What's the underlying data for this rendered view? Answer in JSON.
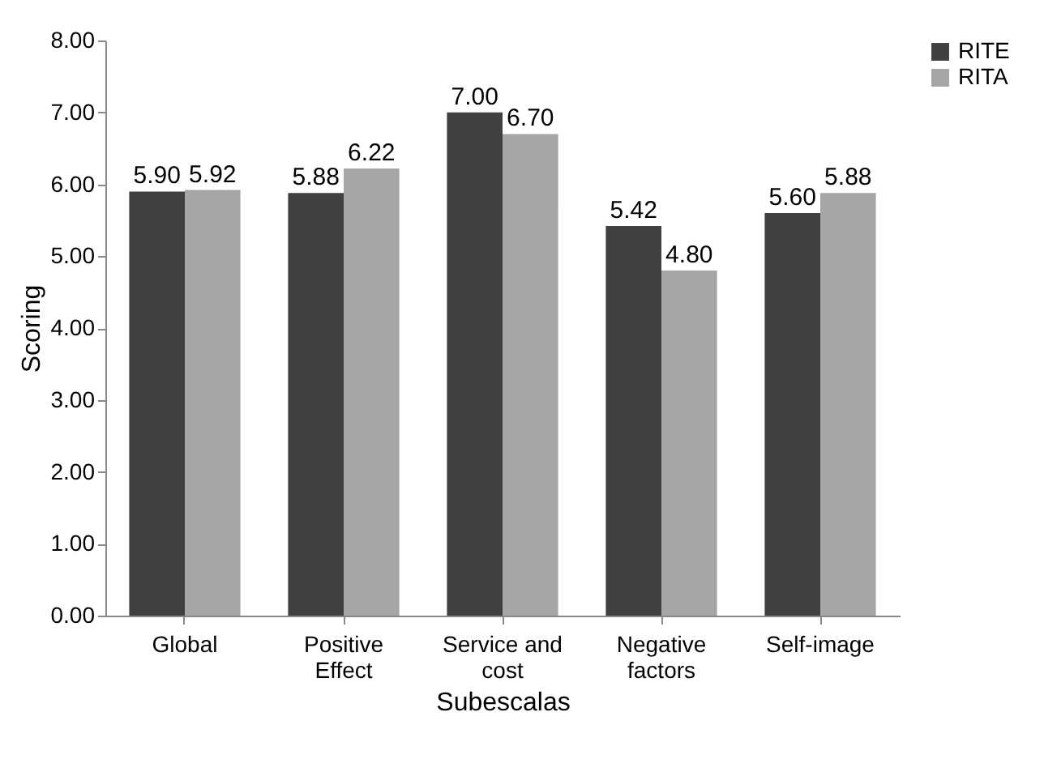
{
  "chart_data": {
    "type": "bar",
    "xlabel": "Subescalas",
    "ylabel": "Scoring",
    "categories": [
      "Global",
      "Positive Effect",
      "Service and cost",
      "Negative factors",
      "Self-image"
    ],
    "series": [
      {
        "name": "RITE",
        "color": "#404040",
        "values": [
          5.9,
          5.88,
          7.0,
          5.42,
          5.6
        ],
        "value_labels": [
          "5.90",
          "5.88",
          "7.00",
          "5.42",
          "5.60"
        ]
      },
      {
        "name": "RITA",
        "color": "#a6a6a6",
        "values": [
          5.92,
          6.22,
          6.7,
          4.8,
          5.88
        ],
        "value_labels": [
          "5.92",
          "6.22",
          "6.70",
          "4.80",
          "5.88"
        ]
      }
    ],
    "ylim": [
      0,
      8
    ],
    "yticks": [
      {
        "value": 0,
        "label": "0.00"
      },
      {
        "value": 1,
        "label": "1.00"
      },
      {
        "value": 2,
        "label": "2.00"
      },
      {
        "value": 3,
        "label": "3.00"
      },
      {
        "value": 4,
        "label": "4.00"
      },
      {
        "value": 5,
        "label": "5.00"
      },
      {
        "value": 6,
        "label": "6.00"
      },
      {
        "value": 7,
        "label": "7.00"
      },
      {
        "value": 8,
        "label": "8.00"
      }
    ],
    "legend": "right",
    "grid": false
  }
}
